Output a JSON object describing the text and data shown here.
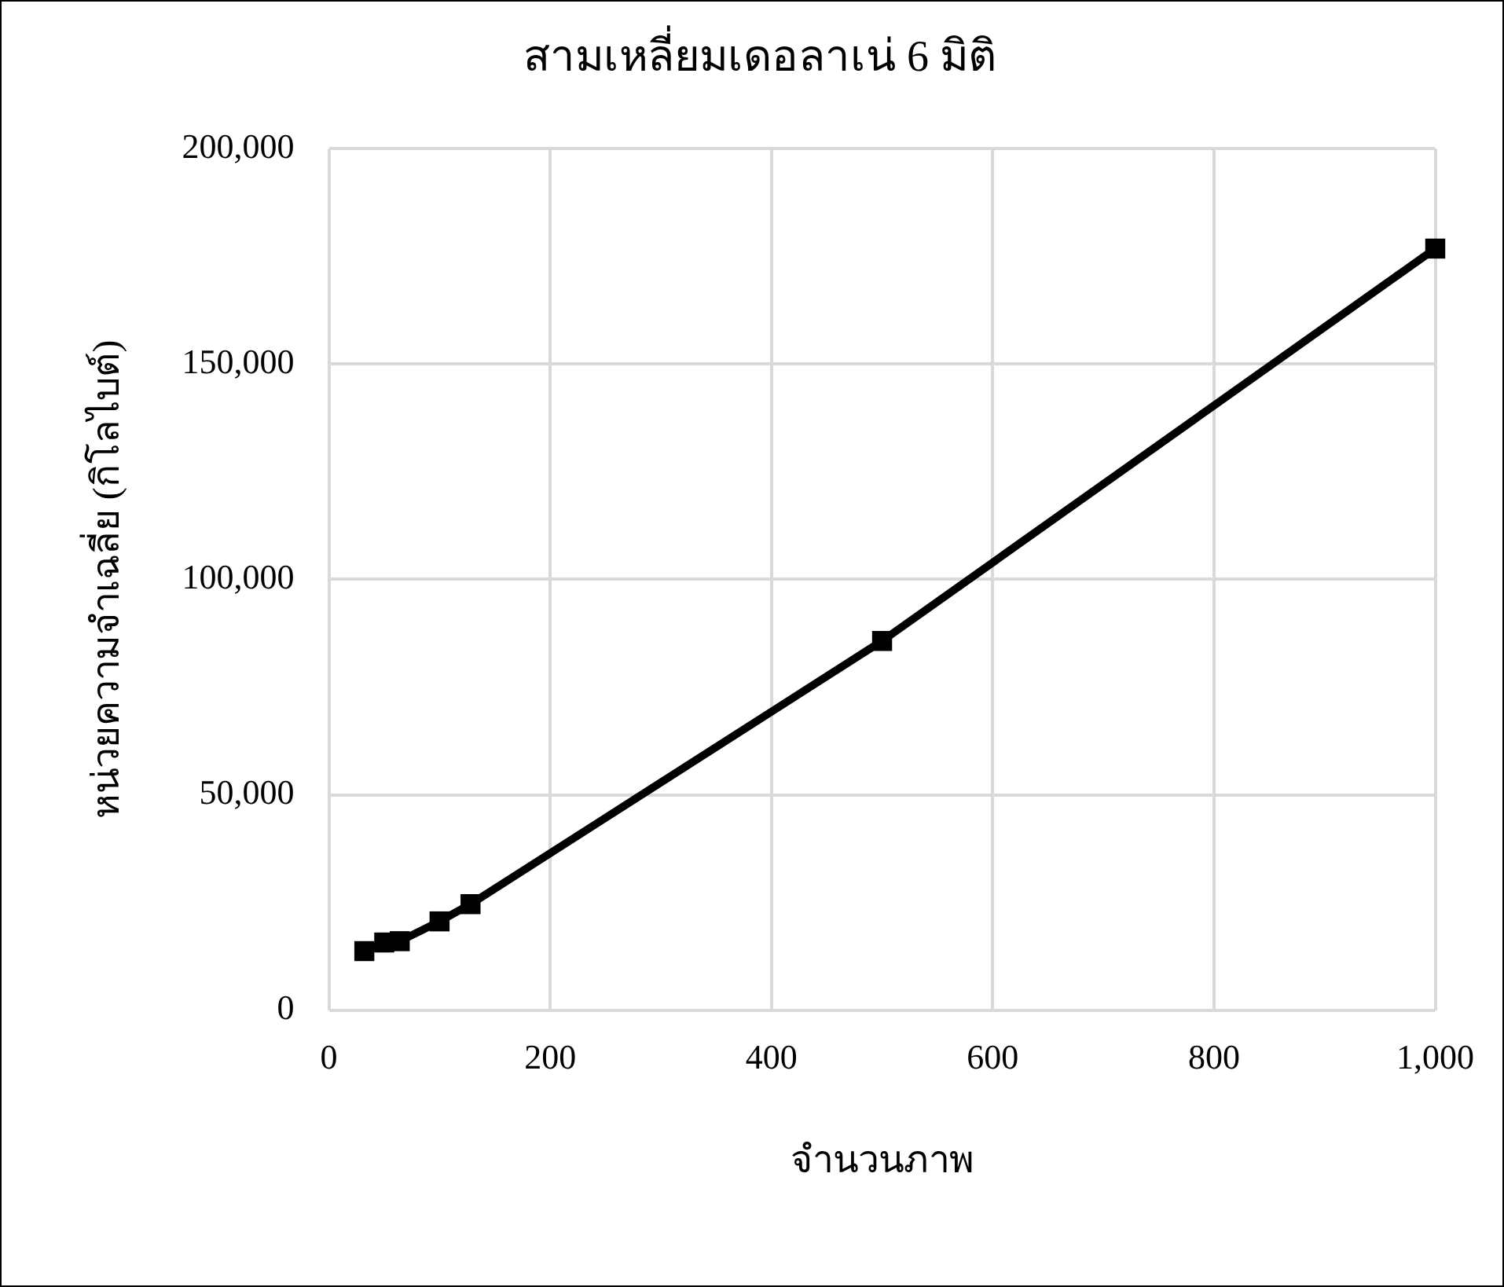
{
  "chart_data": {
    "type": "line",
    "title": "สามเหลี่ยมเดอลาเน่ 6 มิติ",
    "xlabel": "จำนวนภาพ",
    "ylabel": "หน่วยความจำเฉลี่ย (กิโลไบต์)",
    "x": [
      32,
      50,
      64,
      100,
      128,
      500,
      1000
    ],
    "series": [
      {
        "color": "#000000",
        "values": [
          13700,
          15700,
          16000,
          20600,
          24600,
          85700,
          176800
        ]
      }
    ],
    "xlim": [
      0,
      1000
    ],
    "xticks": [
      {
        "value": 0,
        "label": "0"
      },
      {
        "value": 200,
        "label": "200"
      },
      {
        "value": 400,
        "label": "400"
      },
      {
        "value": 600,
        "label": "600"
      },
      {
        "value": 800,
        "label": "800"
      },
      {
        "value": 1000,
        "label": "1,000"
      }
    ],
    "ylim": [
      0,
      200000
    ],
    "yticks": [
      {
        "value": 0,
        "label": "0"
      },
      {
        "value": 50000,
        "label": "50,000"
      },
      {
        "value": 100000,
        "label": "100,000"
      },
      {
        "value": 150000,
        "label": "150,000"
      },
      {
        "value": 200000,
        "label": "200,000"
      }
    ],
    "grid": true,
    "legend": false,
    "marker": "square",
    "line_style": "solid"
  }
}
